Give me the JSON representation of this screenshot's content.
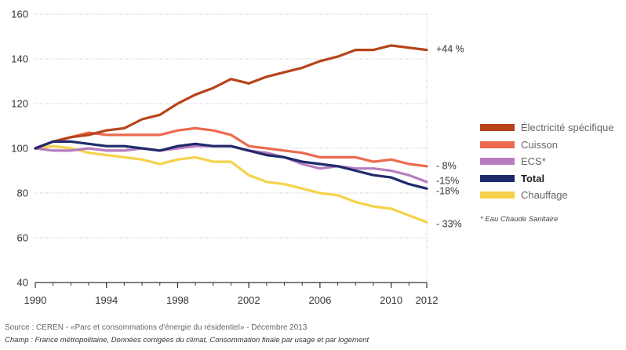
{
  "chart_data": {
    "type": "line",
    "x": [
      1990,
      1991,
      1992,
      1993,
      1994,
      1995,
      1996,
      1997,
      1998,
      1999,
      2000,
      2001,
      2002,
      2003,
      2004,
      2005,
      2006,
      2007,
      2008,
      2009,
      2010,
      2011,
      2012
    ],
    "xticks": [
      "1990",
      "1994",
      "1998",
      "2002",
      "2006",
      "2010",
      "2012"
    ],
    "xtick_values": [
      1990,
      1994,
      1998,
      2002,
      2006,
      2010,
      2012
    ],
    "yticks": [
      "40",
      "60",
      "80",
      "100",
      "120",
      "140",
      "160"
    ],
    "ylim": [
      40,
      160
    ],
    "xlim": [
      1990,
      2012
    ],
    "grid": "horizontal dotted",
    "legend_position": "right",
    "series": [
      {
        "name": "Électricité spécifique",
        "color": "#b5441a",
        "bold": false,
        "end_label": "+44 %",
        "values": [
          100,
          103,
          105,
          106,
          108,
          109,
          113,
          115,
          120,
          124,
          127,
          131,
          129,
          132,
          134,
          136,
          139,
          141,
          144,
          144,
          146,
          145,
          144
        ]
      },
      {
        "name": "Cuisson",
        "color": "#ec6a4f",
        "bold": false,
        "end_label": "- 8%",
        "values": [
          100,
          103,
          105,
          107,
          106,
          106,
          106,
          106,
          108,
          109,
          108,
          106,
          101,
          100,
          99,
          98,
          96,
          96,
          96,
          94,
          95,
          93,
          92
        ]
      },
      {
        "name": "ECS*",
        "color": "#b77cc0",
        "bold": false,
        "end_label": "-15%",
        "values": [
          100,
          99,
          99,
          100,
          99,
          99,
          100,
          99,
          100,
          101,
          101,
          101,
          99,
          98,
          96,
          93,
          91,
          92,
          91,
          91,
          90,
          88,
          85
        ]
      },
      {
        "name": "Total",
        "color": "#1f2a6b",
        "bold": true,
        "end_label": "-18%",
        "values": [
          100,
          103,
          103,
          102,
          101,
          101,
          100,
          99,
          101,
          102,
          101,
          101,
          99,
          97,
          96,
          94,
          93,
          92,
          90,
          88,
          87,
          84,
          82
        ]
      },
      {
        "name": "Chauffage",
        "color": "#f6d24a",
        "bold": false,
        "end_label": "- 33%",
        "values": [
          100,
          101,
          100,
          98,
          97,
          96,
          95,
          93,
          95,
          96,
          94,
          94,
          88,
          85,
          84,
          82,
          80,
          79,
          76,
          74,
          73,
          70,
          67
        ]
      }
    ]
  },
  "footnote": "* Eau Chaude Sanitaire",
  "source": "Source : CEREN - «Parc et consommations d'énergie du résidentiel» - Décembre 2013",
  "champ": "Champ : France métropolitaine, Données corrigées du climat, Consommation finale par usage et par logement"
}
